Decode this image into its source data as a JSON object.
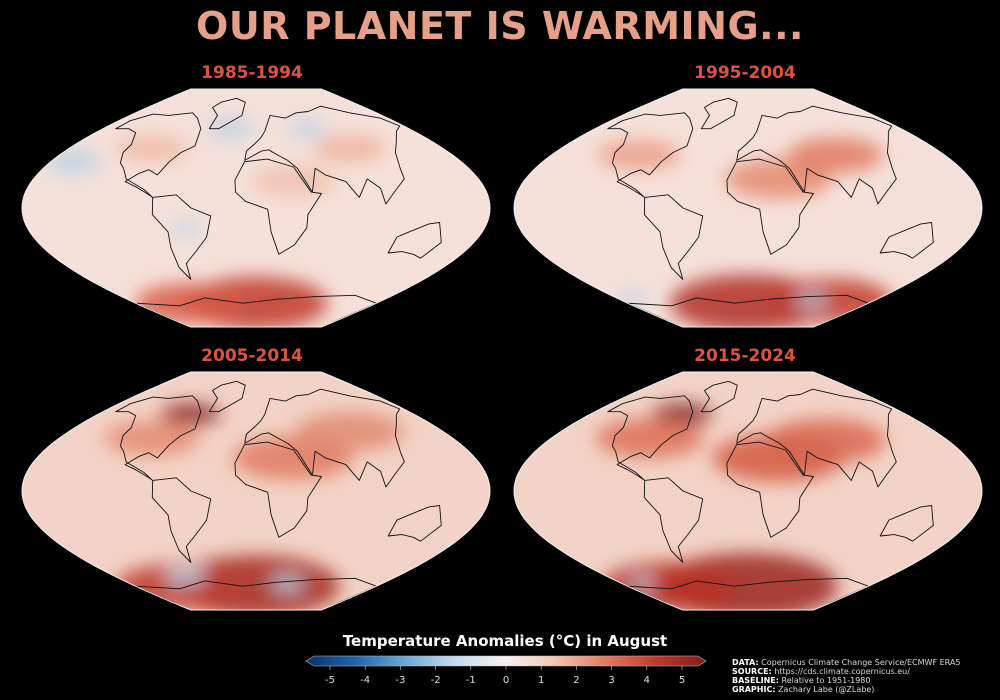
{
  "title": "OUR PLANET IS WARMING...",
  "panels": [
    {
      "label": "1985-1994"
    },
    {
      "label": "1995-2004"
    },
    {
      "label": "2005-2014"
    },
    {
      "label": "2015-2024"
    }
  ],
  "colorbar": {
    "title": "Temperature Anomalies (°C) in August",
    "ticks": [
      "-5",
      "-4",
      "-3",
      "-2",
      "-1",
      "0",
      "1",
      "2",
      "3",
      "4",
      "5"
    ],
    "range": [
      -5,
      5
    ],
    "colors": [
      "#08306b",
      "#2166ac",
      "#6fa8d6",
      "#c6dbef",
      "#f7f3f0",
      "#f2c4b0",
      "#e07a5f",
      "#c0392b",
      "#7f1d1d"
    ]
  },
  "credits": {
    "data_label": "DATA:",
    "data_value": "Copernicus Climate Change Service/ECMWF ERA5",
    "source_label": "SOURCE:",
    "source_value": "https://cds.climate.copernicus.eu/",
    "baseline_label": "BASELINE:",
    "baseline_value": "Relative to 1951-1980",
    "graphic_label": "GRAPHIC:",
    "graphic_value": "Zachary Labe (@ZLabe)"
  }
}
